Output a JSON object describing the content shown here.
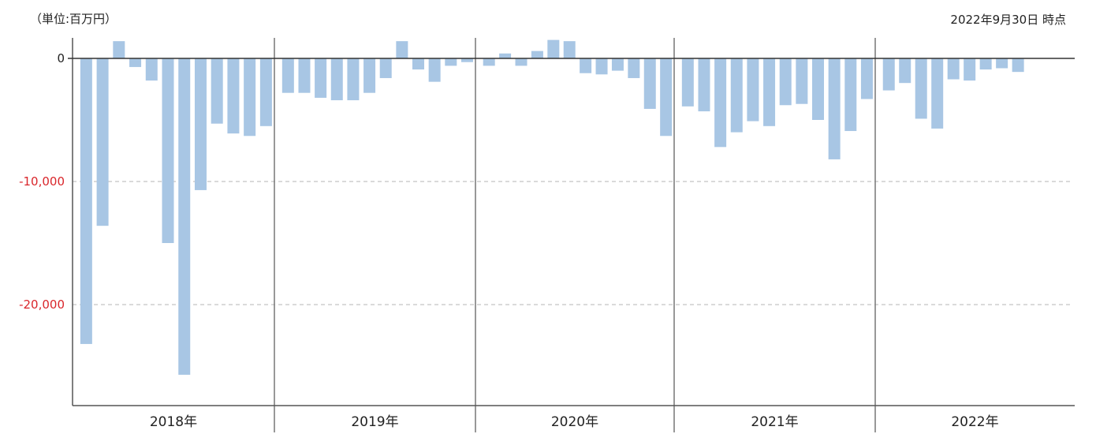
{
  "header": {
    "unit_label": "（単位:百万円）",
    "date_label": "2022年9月30日 時点"
  },
  "chart_data": {
    "type": "bar",
    "title": "",
    "xlabel": "",
    "ylabel": "",
    "ylim": [
      -28500,
      1800
    ],
    "y_ticks": [
      {
        "value": 0,
        "label": "0"
      },
      {
        "value": -10000,
        "label": "-10,000"
      },
      {
        "value": -20000,
        "label": "-20,000"
      }
    ],
    "year_groups": [
      {
        "label": "2018年",
        "values": [
          -23200,
          -13600,
          1400,
          -700,
          -1800,
          -15000,
          -25700,
          -10700,
          -5300,
          -6100,
          -6300,
          -5500
        ]
      },
      {
        "label": "2019年",
        "values": [
          -2800,
          -2800,
          -3200,
          -3400,
          -3400,
          -2800,
          -1600,
          1400,
          -900,
          -1900,
          -600,
          -300
        ]
      },
      {
        "label": "2020年",
        "values": [
          -600,
          400,
          -600,
          600,
          1500,
          1400,
          -1200,
          -1300,
          -1000,
          -1600,
          -4100,
          -6300
        ]
      },
      {
        "label": "2021年",
        "values": [
          -3900,
          -4300,
          -7200,
          -6000,
          -5100,
          -5500,
          -3800,
          -3700,
          -5000,
          -8200,
          -5900,
          -3300
        ]
      },
      {
        "label": "2022年",
        "values": [
          -2600,
          -2000,
          -4900,
          -5700,
          -1700,
          -1800,
          -900,
          -800,
          -1100
        ]
      }
    ],
    "bar_color": "#a8c6e4",
    "negative_tick_color": "#d9262b",
    "grid": true,
    "legend": "none"
  }
}
